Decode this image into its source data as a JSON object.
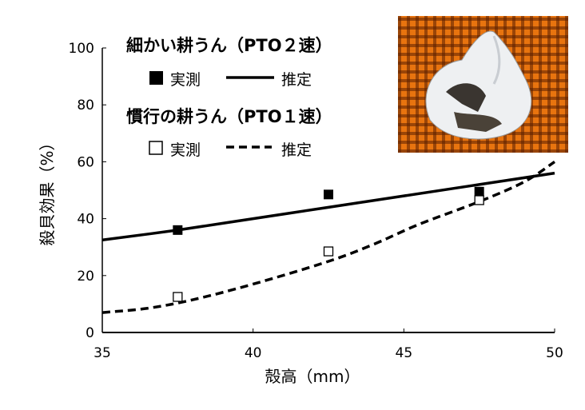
{
  "chart_data": {
    "type": "line",
    "xlabel": "殻高（mm）",
    "ylabel": "殺貝効果（%）",
    "xlim": [
      35,
      50
    ],
    "ylim": [
      0,
      100
    ],
    "xticks": [
      35,
      40,
      45,
      50
    ],
    "yticks": [
      0,
      20,
      40,
      60,
      80,
      100
    ],
    "grid": false,
    "legend": {
      "placement": "top-left",
      "group1_title": "細かい耕うん（PTO２速）",
      "group2_title": "慣行の耕うん（PTO１速）",
      "measured_label": "実測",
      "estimated_label": "推定"
    },
    "series": [
      {
        "name": "細かい耕うん（PTO２速） 実測",
        "kind": "points",
        "marker": "filled-square",
        "x": [
          37.5,
          42.5,
          47.5
        ],
        "y": [
          36,
          48.5,
          49.5
        ]
      },
      {
        "name": "細かい耕うん（PTO２速） 推定",
        "kind": "line",
        "style": "solid",
        "x": [
          35,
          37.5,
          40,
          42.5,
          45,
          47.5,
          50
        ],
        "y": [
          32.5,
          36,
          40,
          44,
          48,
          52,
          56
        ]
      },
      {
        "name": "慣行の耕うん（PTO１速） 実測",
        "kind": "points",
        "marker": "open-square",
        "x": [
          37.5,
          42.5,
          47.5
        ],
        "y": [
          12.5,
          28.5,
          46.5
        ]
      },
      {
        "name": "慣行の耕うん（PTO１速） 推定",
        "kind": "line",
        "style": "dashed",
        "x": [
          35,
          36.5,
          38,
          40,
          42.5,
          44,
          45.5,
          47.5,
          49,
          50
        ],
        "y": [
          7,
          8.5,
          11.5,
          17,
          25,
          31,
          38,
          46,
          53,
          60
        ]
      }
    ]
  },
  "photo": {
    "subject": "snail-shell-photo"
  }
}
